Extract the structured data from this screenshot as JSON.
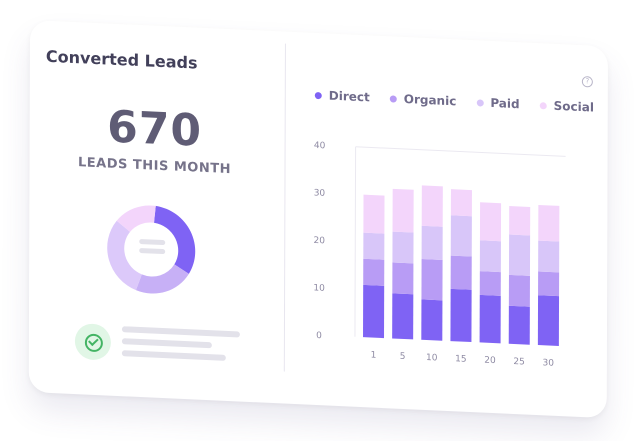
{
  "card": {
    "title": "Converted Leads",
    "metric_value": "670",
    "metric_label": "LEADS THIS MONTH",
    "help_icon": "?"
  },
  "legend": [
    {
      "label": "Direct",
      "color": "#7f63f4"
    },
    {
      "label": "Organic",
      "color": "#b89cf5"
    },
    {
      "label": "Paid",
      "color": "#d8c6f9"
    },
    {
      "label": "Social",
      "color": "#f3d5fb"
    }
  ],
  "donut": {
    "segments": [
      {
        "label": "Direct",
        "value": 0.32,
        "color": "#7f63f4"
      },
      {
        "label": "Organic",
        "value": 0.22,
        "color": "#c7b0f6"
      },
      {
        "label": "Paid",
        "value": 0.3,
        "color": "#dcc9fa"
      },
      {
        "label": "Social",
        "value": 0.16,
        "color": "#f3d5fb"
      }
    ]
  },
  "chart_data": {
    "type": "bar",
    "stacked": true,
    "categories": [
      "1",
      "5",
      "10",
      "15",
      "20",
      "25",
      "30"
    ],
    "series": [
      {
        "name": "Direct",
        "color": "#7f63f4",
        "values": [
          11,
          9.5,
          8.5,
          11,
          10,
          8,
          10.5
        ]
      },
      {
        "name": "Organic",
        "color": "#b89cf5",
        "values": [
          5.5,
          6.5,
          8.5,
          7,
          5,
          6.5,
          5
        ]
      },
      {
        "name": "Paid",
        "color": "#d8c6f9",
        "values": [
          5.5,
          6.5,
          7,
          8.5,
          6.5,
          8.5,
          6.5
        ]
      },
      {
        "name": "Social",
        "color": "#f3d5fb",
        "values": [
          8,
          9,
          8.5,
          5.5,
          8,
          6,
          7.5
        ]
      }
    ],
    "yticks": [
      0,
      10,
      20,
      30,
      40
    ],
    "ylim": [
      0,
      40
    ]
  }
}
